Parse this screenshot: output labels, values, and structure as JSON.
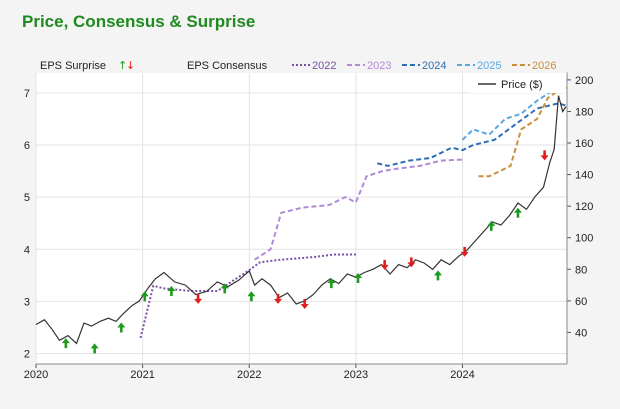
{
  "title": "Price, Consensus & Surprise",
  "chart_data": {
    "type": "line",
    "legend": {
      "surprise_label": "EPS Surprise",
      "consensus_label": "EPS Consensus",
      "price_label": "Price ($)",
      "placement": "top"
    },
    "x_ticks": [
      "2020",
      "2021",
      "2022",
      "2023",
      "2024"
    ],
    "x_tick_values": [
      2020,
      2021,
      2022,
      2023,
      2024
    ],
    "xlim": [
      2020,
      2024.98
    ],
    "left_axis": {
      "ylim": [
        1.8,
        7.4
      ],
      "ticks": [
        "2",
        "3",
        "4",
        "5",
        "6",
        "7"
      ],
      "tick_values": [
        2,
        3,
        4,
        5,
        6,
        7
      ]
    },
    "right_axis": {
      "ylim": [
        20,
        205
      ],
      "ticks": [
        "40",
        "60",
        "80",
        "100",
        "120",
        "140",
        "160",
        "180",
        "200"
      ],
      "tick_values": [
        40,
        60,
        80,
        100,
        120,
        140,
        160,
        180,
        200
      ]
    },
    "grid": true,
    "price": {
      "name": "Price ($)",
      "color": "#333333",
      "x": [
        2020.0,
        2020.08,
        2020.15,
        2020.22,
        2020.3,
        2020.38,
        2020.45,
        2020.52,
        2020.6,
        2020.68,
        2020.75,
        2020.82,
        2020.9,
        2020.97,
        2021.05,
        2021.12,
        2021.2,
        2021.3,
        2021.4,
        2021.5,
        2021.6,
        2021.7,
        2021.8,
        2021.9,
        2022.0,
        2022.05,
        2022.12,
        2022.2,
        2022.28,
        2022.36,
        2022.44,
        2022.52,
        2022.6,
        2022.68,
        2022.76,
        2022.84,
        2022.92,
        2023.0,
        2023.08,
        2023.16,
        2023.24,
        2023.32,
        2023.4,
        2023.48,
        2023.56,
        2023.64,
        2023.72,
        2023.8,
        2023.88,
        2023.96,
        2024.04,
        2024.12,
        2024.2,
        2024.28,
        2024.36,
        2024.44,
        2024.52,
        2024.6,
        2024.68,
        2024.76,
        2024.82,
        2024.86,
        2024.9,
        2024.94,
        2024.97
      ],
      "y": [
        45,
        48,
        42,
        35,
        38,
        33,
        46,
        44,
        47,
        49,
        47,
        52,
        57,
        60,
        68,
        74,
        78,
        72,
        70,
        64,
        66,
        72,
        69,
        73,
        79,
        70,
        74,
        70,
        62,
        65,
        58,
        60,
        64,
        70,
        74,
        71,
        77,
        75,
        78,
        80,
        83,
        77,
        83,
        81,
        86,
        84,
        80,
        86,
        83,
        88,
        92,
        98,
        104,
        110,
        108,
        114,
        122,
        118,
        126,
        132,
        148,
        156,
        190,
        180,
        183
      ]
    },
    "consensus": [
      {
        "name": "2022",
        "color": "#7b4fa8",
        "dash": "2,2",
        "x": [
          2020.98,
          2021.1,
          2021.2,
          2021.45,
          2021.7,
          2022.0,
          2022.1,
          2022.3,
          2022.6,
          2022.8,
          2023.0
        ],
        "y": [
          2.3,
          3.3,
          3.25,
          3.2,
          3.2,
          3.6,
          3.75,
          3.8,
          3.85,
          3.9,
          3.9
        ]
      },
      {
        "name": "2023",
        "color": "#b08ad6",
        "dash": "5,3",
        "x": [
          2022.05,
          2022.2,
          2022.3,
          2022.5,
          2022.75,
          2022.9,
          2023.0,
          2023.1,
          2023.25,
          2023.4,
          2023.6,
          2023.8,
          2024.0
        ],
        "y": [
          3.8,
          4.0,
          4.7,
          4.8,
          4.85,
          5.0,
          4.9,
          5.4,
          5.5,
          5.55,
          5.6,
          5.7,
          5.72
        ]
      },
      {
        "name": "2024",
        "color": "#2e6eb5",
        "dash": "5,3",
        "x": [
          2023.2,
          2023.3,
          2023.5,
          2023.7,
          2023.9,
          2024.0,
          2024.1,
          2024.3,
          2024.5,
          2024.7,
          2024.9,
          2024.98
        ],
        "y": [
          5.65,
          5.6,
          5.7,
          5.75,
          5.95,
          5.9,
          6.0,
          6.1,
          6.4,
          6.7,
          6.8,
          6.75
        ]
      },
      {
        "name": "2025",
        "color": "#5aa7e0",
        "dash": "5,3",
        "x": [
          2024.0,
          2024.1,
          2024.25,
          2024.4,
          2024.55,
          2024.7,
          2024.85,
          2024.98
        ],
        "y": [
          6.1,
          6.3,
          6.2,
          6.5,
          6.6,
          6.85,
          7.05,
          7.1
        ]
      },
      {
        "name": "2026",
        "color": "#c98f3c",
        "dash": "5,3",
        "x": [
          2024.15,
          2024.25,
          2024.45,
          2024.55,
          2024.7,
          2024.8,
          2024.9,
          2024.98
        ],
        "y": [
          5.4,
          5.4,
          5.6,
          6.3,
          6.5,
          6.9,
          7.05,
          7.1
        ]
      }
    ],
    "surprises": [
      {
        "x": 2020.28,
        "y": 2.2,
        "dir": "up"
      },
      {
        "x": 2020.55,
        "y": 2.1,
        "dir": "up"
      },
      {
        "x": 2020.8,
        "y": 2.5,
        "dir": "up"
      },
      {
        "x": 2021.02,
        "y": 3.1,
        "dir": "up"
      },
      {
        "x": 2021.27,
        "y": 3.2,
        "dir": "up"
      },
      {
        "x": 2021.52,
        "y": 3.05,
        "dir": "down"
      },
      {
        "x": 2021.77,
        "y": 3.25,
        "dir": "up"
      },
      {
        "x": 2022.02,
        "y": 3.1,
        "dir": "up"
      },
      {
        "x": 2022.27,
        "y": 3.05,
        "dir": "down"
      },
      {
        "x": 2022.52,
        "y": 2.95,
        "dir": "down"
      },
      {
        "x": 2022.77,
        "y": 3.35,
        "dir": "up"
      },
      {
        "x": 2023.02,
        "y": 3.45,
        "dir": "up"
      },
      {
        "x": 2023.27,
        "y": 3.7,
        "dir": "down"
      },
      {
        "x": 2023.52,
        "y": 3.75,
        "dir": "down"
      },
      {
        "x": 2023.77,
        "y": 3.5,
        "dir": "up"
      },
      {
        "x": 2024.02,
        "y": 3.95,
        "dir": "down"
      },
      {
        "x": 2024.27,
        "y": 4.45,
        "dir": "up"
      },
      {
        "x": 2024.52,
        "y": 4.7,
        "dir": "up"
      },
      {
        "x": 2024.77,
        "y": 5.8,
        "dir": "down"
      }
    ],
    "colors": {
      "up": "#1e9a1e",
      "down": "#e01e1e",
      "title": "#1f8a1f",
      "grid": "#e3e3e3"
    }
  }
}
